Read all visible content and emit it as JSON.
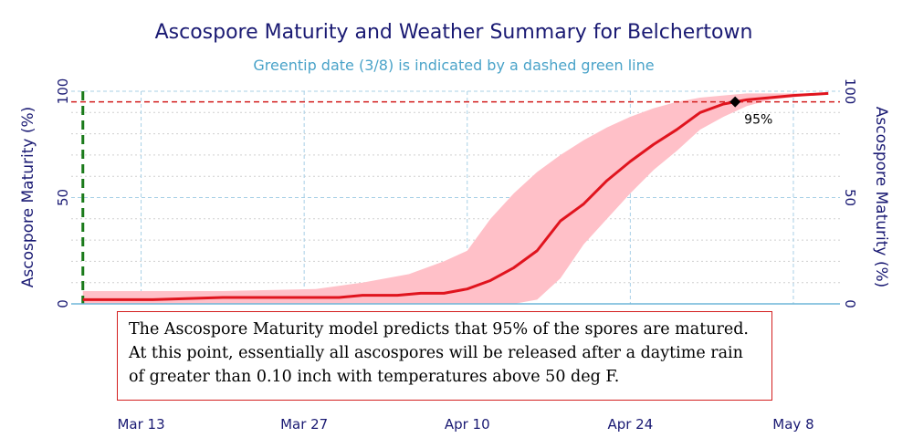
{
  "chart_data": {
    "type": "line",
    "title": "Ascospore Maturity and Weather Summary for Belchertown",
    "subtitle": "Greentip date (3/8) is indicated by a dashed green line",
    "ylabel_left": "Ascospore Maturity (%)",
    "ylabel_right": "Ascospore Maturity (%)",
    "ylim": [
      0,
      100
    ],
    "yticks": [
      "0",
      "50",
      "100"
    ],
    "xlim": [
      "2024-03-07",
      "2024-05-12"
    ],
    "xticks": [
      {
        "date": "2024-03-13",
        "label": "Mar 13"
      },
      {
        "date": "2024-03-27",
        "label": "Mar 27"
      },
      {
        "date": "2024-04-10",
        "label": "Apr 10"
      },
      {
        "date": "2024-04-24",
        "label": "Apr 24"
      },
      {
        "date": "2024-05-08",
        "label": "May 8"
      }
    ],
    "greentip_date": "2024-03-08",
    "threshold": 95,
    "marker": {
      "date": "2024-05-03",
      "value": 95,
      "label": "95%"
    },
    "colors": {
      "line": "#e0141e",
      "band": "#ffc0c8",
      "threshold": "#d31f1f",
      "greentip": "#1a7a1a",
      "grid_major": "#a8d0e6",
      "axis": "#6fb5d8"
    },
    "series": [
      {
        "role": "median",
        "x": [
          "2024-03-08",
          "2024-03-14",
          "2024-03-20",
          "2024-03-26",
          "2024-03-30",
          "2024-04-01",
          "2024-04-04",
          "2024-04-06",
          "2024-04-08",
          "2024-04-10",
          "2024-04-12",
          "2024-04-14",
          "2024-04-16",
          "2024-04-18",
          "2024-04-20",
          "2024-04-22",
          "2024-04-24",
          "2024-04-26",
          "2024-04-28",
          "2024-04-30",
          "2024-05-02",
          "2024-05-04",
          "2024-05-06",
          "2024-05-08",
          "2024-05-11"
        ],
        "values": [
          2,
          2,
          3,
          3,
          3,
          4,
          4,
          5,
          5,
          7,
          11,
          17,
          25,
          39,
          47,
          58,
          67,
          75,
          82,
          90,
          94,
          96,
          97,
          98,
          99
        ]
      },
      {
        "role": "upper",
        "x": [
          "2024-03-08",
          "2024-03-20",
          "2024-03-28",
          "2024-04-01",
          "2024-04-05",
          "2024-04-08",
          "2024-04-10",
          "2024-04-12",
          "2024-04-14",
          "2024-04-16",
          "2024-04-18",
          "2024-04-20",
          "2024-04-22",
          "2024-04-24",
          "2024-04-26",
          "2024-04-28",
          "2024-04-30",
          "2024-05-02",
          "2024-05-04",
          "2024-05-11"
        ],
        "values": [
          6,
          6,
          7,
          10,
          14,
          20,
          25,
          40,
          52,
          62,
          70,
          77,
          83,
          88,
          92,
          95,
          97,
          98,
          99,
          99
        ]
      },
      {
        "role": "lower",
        "x": [
          "2024-03-08",
          "2024-04-10",
          "2024-04-14",
          "2024-04-16",
          "2024-04-18",
          "2024-04-20",
          "2024-04-22",
          "2024-04-24",
          "2024-04-26",
          "2024-04-28",
          "2024-04-30",
          "2024-05-02",
          "2024-05-04",
          "2024-05-06",
          "2024-05-11"
        ],
        "values": [
          0,
          0,
          0,
          2,
          12,
          28,
          40,
          52,
          63,
          72,
          82,
          88,
          93,
          96,
          99
        ]
      }
    ]
  },
  "message": {
    "lines": [
      "The Ascospore Maturity model predicts that 95% of the spores are matured.",
      "At this point, essentially all ascospores will be released after a daytime rain",
      "of greater than 0.10 inch with temperatures above 50 deg F."
    ]
  }
}
